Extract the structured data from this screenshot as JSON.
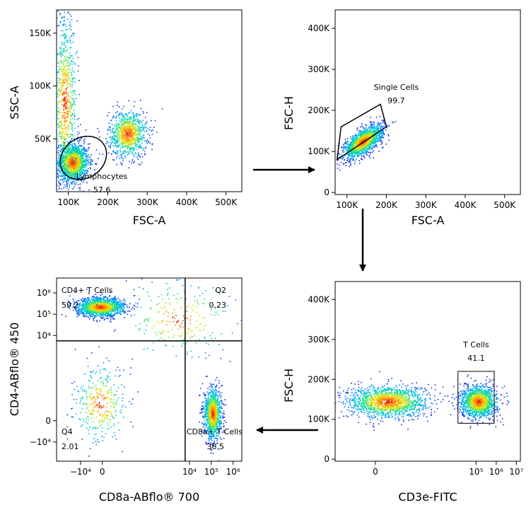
{
  "chart_data": [
    {
      "type": "scatter",
      "plot": "p1",
      "xlabel": "FSC-A",
      "ylabel": "SSC-A",
      "xlim": [
        70000,
        540000
      ],
      "ylim": [
        0,
        172000
      ],
      "xticks": [
        {
          "v": 100000,
          "label": "100K"
        },
        {
          "v": 200000,
          "label": "200K"
        },
        {
          "v": 300000,
          "label": "300K"
        },
        {
          "v": 400000,
          "label": "400K"
        },
        {
          "v": 500000,
          "label": "500K"
        }
      ],
      "yticks": [
        {
          "v": 50000,
          "label": "50K"
        },
        {
          "v": 100000,
          "label": "100K"
        },
        {
          "v": 150000,
          "label": "150K"
        }
      ],
      "clusters": [
        {
          "cx": 110000,
          "cy": 28000,
          "sx": 20000,
          "sy": 9000,
          "n": 1600
        },
        {
          "cx": 250000,
          "cy": 55000,
          "sx": 24000,
          "sy": 11000,
          "n": 900
        },
        {
          "cx": 90000,
          "cy": 85000,
          "sx": 15000,
          "sy": 40000,
          "n": 800
        }
      ],
      "gate": {
        "name": "Lymphocytes",
        "value": "57.6",
        "shape": "ellipse",
        "cx": 138000,
        "cy": 32000,
        "rx": 62000,
        "ry": 19000,
        "angle": -35
      },
      "label_at": {
        "x": 185000,
        "y": 12000
      }
    },
    {
      "type": "scatter",
      "plot": "p2",
      "xlabel": "FSC-A",
      "ylabel": "FSC-H",
      "xlim": [
        70000,
        540000
      ],
      "ylim": [
        -5000,
        445000
      ],
      "xticks": [
        {
          "v": 100000,
          "label": "100K"
        },
        {
          "v": 200000,
          "label": "200K"
        },
        {
          "v": 300000,
          "label": "300K"
        },
        {
          "v": 400000,
          "label": "400K"
        },
        {
          "v": 500000,
          "label": "500K"
        }
      ],
      "yticks": [
        {
          "v": 0,
          "label": "0"
        },
        {
          "v": 100000,
          "label": "100K"
        },
        {
          "v": 200000,
          "label": "200K"
        },
        {
          "v": 300000,
          "label": "300K"
        },
        {
          "v": 400000,
          "label": "400K"
        }
      ],
      "clusters": [
        {
          "cx": 140000,
          "cy": 125000,
          "sx": 25000,
          "sy": 15000,
          "n": 1500,
          "diag": true
        }
      ],
      "gate": {
        "name": "Single Cells",
        "value": "99.7",
        "shape": "polygon",
        "points": [
          [
            75000,
            80000
          ],
          [
            85000,
            160000
          ],
          [
            185000,
            215000
          ],
          [
            200000,
            160000
          ]
        ]
      },
      "label_at": {
        "x": 225000,
        "y": 250000
      }
    },
    {
      "type": "scatter",
      "plot": "p3",
      "xlabel": "CD3e-FITC",
      "ylabel": "FSC-H",
      "xlim": [
        -2,
        7.2
      ],
      "ylim": [
        -5000,
        445000
      ],
      "xticks": [
        {
          "v": 0,
          "label": "0"
        },
        {
          "v": 5,
          "label": "10⁵"
        },
        {
          "v": 6,
          "label": "10⁶"
        },
        {
          "v": 7,
          "label": "10⁷"
        }
      ],
      "yticks": [
        {
          "v": 0,
          "label": "0"
        },
        {
          "v": 100000,
          "label": "100K"
        },
        {
          "v": 200000,
          "label": "200K"
        },
        {
          "v": 300000,
          "label": "300K"
        },
        {
          "v": 400000,
          "label": "400K"
        }
      ],
      "clusters": [
        {
          "cx": 0.6,
          "cy": 145000,
          "sx": 1.0,
          "sy": 20000,
          "n": 1500
        },
        {
          "cx": 5.1,
          "cy": 145000,
          "sx": 0.45,
          "sy": 20000,
          "n": 1300
        }
      ],
      "gate": {
        "name": "T Cells",
        "value": "41.1",
        "shape": "rect",
        "x1": 4.1,
        "x2": 5.9,
        "y1": 90000,
        "y2": 220000
      },
      "label_at": {
        "x": 5.0,
        "y": 280000
      }
    },
    {
      "type": "scatter",
      "plot": "p4",
      "xlabel": "CD8a-ABflo® 700",
      "ylabel": "CD4-ABflo® 450",
      "xlim": [
        -2.1,
        6.4
      ],
      "ylim": [
        -1.9,
        6.7
      ],
      "xticks": [
        {
          "v": -1,
          "label": "−10⁴"
        },
        {
          "v": 0,
          "label": "0"
        },
        {
          "v": 4,
          "label": "10⁴"
        },
        {
          "v": 5,
          "label": "10⁵"
        },
        {
          "v": 6,
          "label": "10⁶"
        }
      ],
      "yticks": [
        {
          "v": -1,
          "label": "−10⁴"
        },
        {
          "v": 0,
          "label": "0"
        },
        {
          "v": 4,
          "label": "10⁴"
        },
        {
          "v": 5,
          "label": "10⁵"
        },
        {
          "v": 6,
          "label": "10⁶"
        }
      ],
      "clusters": [
        {
          "cx": -0.1,
          "cy": 5.35,
          "sx": 0.55,
          "sy": 0.22,
          "n": 1500
        },
        {
          "cx": 5.05,
          "cy": 0.35,
          "sx": 0.2,
          "sy": 0.6,
          "n": 1100
        },
        {
          "cx": -0.1,
          "cy": 0.8,
          "sx": 0.6,
          "sy": 0.9,
          "n": 350
        },
        {
          "cx": 3.5,
          "cy": 4.8,
          "sx": 1.3,
          "sy": 0.9,
          "n": 250
        }
      ],
      "quadrant": {
        "x": 3.8,
        "y": 3.75
      },
      "quadrants": [
        {
          "name": "CD4+ T Cells",
          "value": "59.2",
          "pos": "top-left"
        },
        {
          "name": "Q2",
          "value": "0.23",
          "pos": "top-right"
        },
        {
          "name": "Q4",
          "value": "2.01",
          "pos": "bottom-left"
        },
        {
          "name": "CD8a+ T Cells",
          "value": "38.5",
          "pos": "bottom-right"
        }
      ]
    }
  ]
}
